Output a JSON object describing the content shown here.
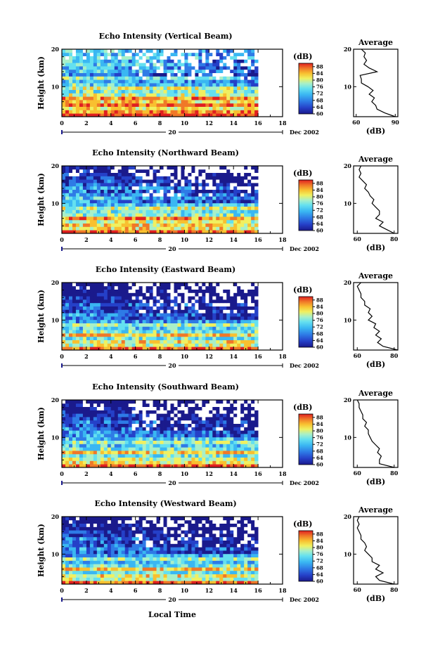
{
  "figure": {
    "xlabel_common": "Local Time",
    "date_label": "Dec 2002",
    "day_label": "20"
  },
  "colorbar": {
    "unit": "(dB)",
    "ticks": [
      "60",
      "64",
      "68",
      "72",
      "76",
      "80",
      "84",
      "88"
    ],
    "range": [
      60,
      90
    ],
    "colors": [
      "#1a1a8c",
      "#2540c8",
      "#2e7be6",
      "#3ab7f2",
      "#64e0f0",
      "#a8f0c8",
      "#f0f060",
      "#f8c030",
      "#f07828",
      "#e02020"
    ]
  },
  "chart_data": [
    {
      "type": "heatmap",
      "title": "Echo Intensity (Vertical Beam)",
      "ylabel": "Height (km)",
      "xlim": [
        0,
        18
      ],
      "ylim": [
        2,
        20
      ],
      "xticks": [
        "0",
        "2",
        "4",
        "6",
        "8",
        "10",
        "12",
        "14",
        "16",
        "18"
      ],
      "yticks": [
        "10",
        "20"
      ],
      "data_xrange": [
        0,
        16
      ],
      "profile_mean_db": [
        88,
        84,
        80,
        86,
        81,
        84,
        78,
        75,
        79,
        74,
        72,
        76,
        70,
        73,
        71,
        74,
        72,
        75,
        73,
        74
      ],
      "side_profile": {
        "title": "Average",
        "xlabel": "(dB)",
        "xticks": [
          "60",
          "90"
        ],
        "xlim": [
          58,
          92
        ],
        "heights": [
          2,
          3,
          4,
          5,
          6,
          7,
          8,
          9,
          10,
          11,
          12,
          13,
          14,
          15,
          16,
          17,
          18,
          19,
          20
        ],
        "values": [
          90,
          82,
          76,
          75,
          72,
          74,
          70,
          73,
          69,
          64,
          64,
          63,
          76,
          70,
          66,
          68,
          66,
          67,
          64
        ]
      }
    },
    {
      "type": "heatmap",
      "title": "Echo Intensity (Northward Beam)",
      "ylabel": "Height (km)",
      "xlim": [
        0,
        18
      ],
      "ylim": [
        2,
        20
      ],
      "xticks": [
        "0",
        "2",
        "4",
        "6",
        "8",
        "10",
        "12",
        "14",
        "16",
        "18"
      ],
      "yticks": [
        "10",
        "20"
      ],
      "data_xrange": [
        0,
        16
      ],
      "profile_mean_db": [
        86,
        80,
        82,
        78,
        84,
        76,
        74,
        78,
        72,
        70,
        72,
        70,
        68,
        70,
        66,
        66,
        64,
        64,
        62,
        62
      ],
      "side_profile": {
        "title": "Average",
        "xlabel": "(dB)",
        "xticks": [
          "60",
          "80"
        ],
        "xlim": [
          58,
          82
        ],
        "heights": [
          2,
          3,
          4,
          5,
          6,
          7,
          8,
          9,
          10,
          11,
          12,
          13,
          14,
          15,
          16,
          17,
          18,
          19,
          20
        ],
        "values": [
          80,
          76,
          72,
          74,
          70,
          72,
          72,
          70,
          68,
          69,
          67,
          66,
          64,
          65,
          63,
          61,
          62,
          61,
          62
        ]
      }
    },
    {
      "type": "heatmap",
      "title": "Echo Intensity (Eastward Beam)",
      "ylabel": "Height (km)",
      "xlim": [
        0,
        18
      ],
      "ylim": [
        2,
        20
      ],
      "xticks": [
        "0",
        "2",
        "4",
        "6",
        "8",
        "10",
        "12",
        "14",
        "16",
        "18"
      ],
      "yticks": [
        "10",
        "20"
      ],
      "data_xrange": [
        0,
        16
      ],
      "profile_mean_db": [
        86,
        78,
        80,
        74,
        82,
        74,
        72,
        76,
        70,
        68,
        70,
        66,
        66,
        68,
        64,
        64,
        62,
        62,
        60,
        60
      ],
      "side_profile": {
        "title": "Average",
        "xlabel": "(dB)",
        "xticks": [
          "60",
          "80"
        ],
        "xlim": [
          58,
          82
        ],
        "heights": [
          2,
          3,
          4,
          5,
          6,
          7,
          8,
          9,
          10,
          11,
          12,
          13,
          14,
          15,
          16,
          17,
          18,
          19,
          20
        ],
        "values": [
          82,
          74,
          71,
          73,
          70,
          72,
          69,
          70,
          66,
          68,
          66,
          67,
          64,
          64,
          62,
          62,
          61,
          60,
          62
        ]
      }
    },
    {
      "type": "heatmap",
      "title": "Echo Intensity (Southward Beam)",
      "ylabel": "Height (km)",
      "xlim": [
        0,
        18
      ],
      "ylim": [
        2,
        20
      ],
      "xticks": [
        "0",
        "2",
        "4",
        "6",
        "8",
        "10",
        "12",
        "14",
        "16",
        "18"
      ],
      "yticks": [
        "10",
        "20"
      ],
      "data_xrange": [
        0,
        16
      ],
      "profile_mean_db": [
        86,
        80,
        78,
        74,
        82,
        74,
        72,
        76,
        72,
        70,
        70,
        68,
        66,
        68,
        64,
        64,
        62,
        62,
        60,
        60
      ],
      "side_profile": {
        "title": "Average",
        "xlabel": "(dB)",
        "xticks": [
          "60",
          "80"
        ],
        "xlim": [
          58,
          82
        ],
        "heights": [
          2,
          3,
          4,
          5,
          6,
          7,
          8,
          9,
          10,
          11,
          12,
          13,
          14,
          15,
          16,
          17,
          18,
          19,
          20
        ],
        "values": [
          80,
          72,
          72,
          73,
          71,
          72,
          70,
          68,
          67,
          66,
          66,
          64,
          65,
          63,
          63,
          62,
          61,
          61,
          60
        ]
      }
    },
    {
      "type": "heatmap",
      "title": "Echo Intensity (Westward Beam)",
      "ylabel": "Height (km)",
      "xlim": [
        0,
        18
      ],
      "ylim": [
        2,
        20
      ],
      "xticks": [
        "0",
        "2",
        "4",
        "6",
        "8",
        "10",
        "12",
        "14",
        "16",
        "18"
      ],
      "yticks": [
        "10",
        "20"
      ],
      "data_xrange": [
        0,
        16
      ],
      "profile_mean_db": [
        86,
        78,
        80,
        74,
        82,
        74,
        72,
        76,
        70,
        68,
        70,
        66,
        66,
        68,
        64,
        64,
        62,
        62,
        60,
        60
      ],
      "side_profile": {
        "title": "Average",
        "xlabel": "(dB)",
        "xticks": [
          "60",
          "80"
        ],
        "xlim": [
          58,
          82
        ],
        "heights": [
          2,
          3,
          4,
          5,
          6,
          7,
          8,
          9,
          10,
          11,
          12,
          13,
          14,
          15,
          16,
          17,
          18,
          19,
          20
        ],
        "values": [
          80,
          72,
          70,
          74,
          70,
          72,
          68,
          68,
          66,
          64,
          65,
          64,
          62,
          62,
          61,
          60,
          61,
          60,
          61
        ]
      }
    }
  ]
}
